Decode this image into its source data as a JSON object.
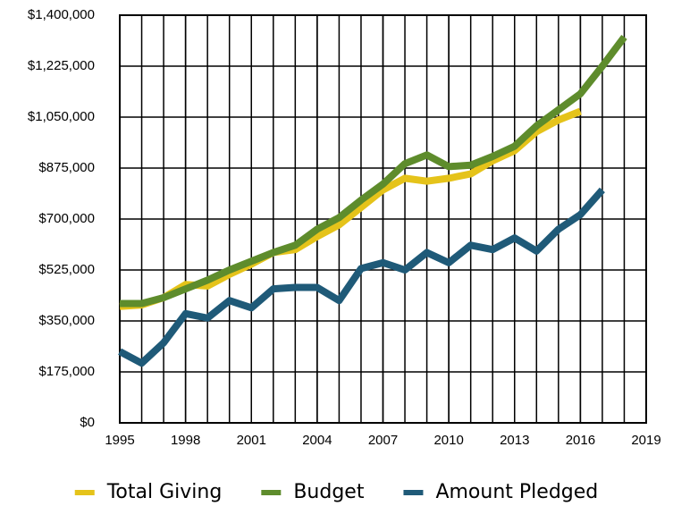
{
  "chart_data": {
    "type": "line",
    "x": [
      1995,
      1996,
      1997,
      1998,
      1999,
      2000,
      2001,
      2002,
      2003,
      2004,
      2005,
      2006,
      2007,
      2008,
      2009,
      2010,
      2011,
      2012,
      2013,
      2014,
      2015,
      2016,
      2017,
      2018
    ],
    "series": [
      {
        "name": "Total Giving",
        "color": "#e5c31a",
        "values": [
          400000,
          405000,
          430000,
          475000,
          470000,
          510000,
          545000,
          585000,
          595000,
          640000,
          680000,
          740000,
          800000,
          840000,
          830000,
          840000,
          855000,
          900000,
          935000,
          1000000,
          1040000,
          1070000,
          null,
          null
        ]
      },
      {
        "name": "Budget",
        "color": "#5e8c2c",
        "values": [
          410000,
          410000,
          430000,
          460000,
          490000,
          525000,
          555000,
          585000,
          610000,
          665000,
          705000,
          765000,
          820000,
          890000,
          920000,
          880000,
          885000,
          915000,
          950000,
          1020000,
          1075000,
          1130000,
          1225000,
          1325000
        ]
      },
      {
        "name": "Amount Pledged",
        "color": "#1f5a78",
        "values": [
          245000,
          205000,
          275000,
          375000,
          360000,
          420000,
          395000,
          460000,
          465000,
          465000,
          420000,
          530000,
          550000,
          525000,
          585000,
          550000,
          610000,
          595000,
          635000,
          590000,
          665000,
          715000,
          800000,
          null
        ]
      }
    ],
    "xlim": [
      1995,
      2019
    ],
    "xticks": [
      1995,
      1998,
      2001,
      2004,
      2007,
      2010,
      2013,
      2016,
      2019
    ],
    "ylim": [
      0,
      1400000
    ],
    "yticks": [
      {
        "value": 0,
        "label": "$0"
      },
      {
        "value": 175000,
        "label": "$175,000"
      },
      {
        "value": 350000,
        "label": "$350,000"
      },
      {
        "value": 525000,
        "label": "$525,000"
      },
      {
        "value": 700000,
        "label": "$700,000"
      },
      {
        "value": 875000,
        "label": "$875,000"
      },
      {
        "value": 1050000,
        "label": "$1,050,000"
      },
      {
        "value": 1225000,
        "label": "$1,225,000"
      },
      {
        "value": 1400000,
        "label": "$1,400,000"
      }
    ],
    "grid": true,
    "legend": "bottom"
  }
}
